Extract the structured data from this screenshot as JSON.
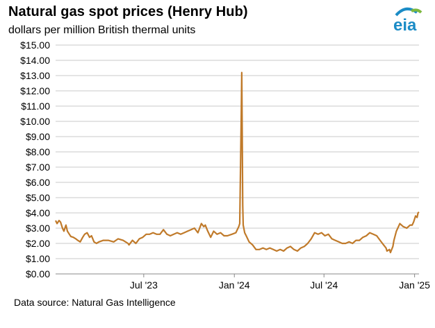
{
  "header": {
    "title": "Natural gas spot prices (Henry Hub)",
    "subtitle": "dollars per million British thermal units",
    "logo_text": "eia"
  },
  "footer": {
    "source": "Data source: Natural Gas Intelligence"
  },
  "colors": {
    "line": "#C07A2A",
    "grid": "#C8C8C8",
    "axis": "#888888",
    "logo_blue": "#1B8CC6",
    "logo_green": "#7DB83F"
  },
  "chart_data": {
    "type": "line",
    "title": "Natural gas spot prices (Henry Hub)",
    "ylabel": "dollars per million British thermal units",
    "ylim": [
      0,
      15
    ],
    "xlim": [
      "2023-01-03",
      "2025-01-10"
    ],
    "grid": true,
    "y_ticks": [
      0,
      1,
      2,
      3,
      4,
      5,
      6,
      7,
      8,
      9,
      10,
      11,
      12,
      13,
      14,
      15
    ],
    "y_tick_labels": [
      "$0.00",
      "$1.00",
      "$2.00",
      "$3.00",
      "$4.00",
      "$5.00",
      "$6.00",
      "$7.00",
      "$8.00",
      "$9.00",
      "$10.00",
      "$11.00",
      "$12.00",
      "$13.00",
      "$14.00",
      "$15.00"
    ],
    "x_ticks": [
      {
        "date": "2023-07-01",
        "label": "Jul '23"
      },
      {
        "date": "2024-01-01",
        "label": "Jan '24"
      },
      {
        "date": "2024-07-01",
        "label": "Jul '24"
      },
      {
        "date": "2025-01-01",
        "label": "Jan '25"
      }
    ],
    "series": [
      {
        "x": [
          "2023-01-03",
          "2023-01-06",
          "2023-01-10",
          "2023-01-13",
          "2023-01-17",
          "2023-01-20",
          "2023-01-24",
          "2023-01-27",
          "2023-01-31",
          "2023-02-03",
          "2023-02-08",
          "2023-02-13",
          "2023-02-17",
          "2023-02-22",
          "2023-02-27",
          "2023-03-03",
          "2023-03-08",
          "2023-03-13",
          "2023-03-17",
          "2023-03-22",
          "2023-03-27",
          "2023-04-01",
          "2023-04-10",
          "2023-04-20",
          "2023-05-01",
          "2023-05-10",
          "2023-05-20",
          "2023-05-30",
          "2023-06-01",
          "2023-06-08",
          "2023-06-15",
          "2023-06-22",
          "2023-06-29",
          "2023-07-06",
          "2023-07-13",
          "2023-07-20",
          "2023-07-27",
          "2023-08-03",
          "2023-08-10",
          "2023-08-17",
          "2023-08-24",
          "2023-08-31",
          "2023-09-07",
          "2023-09-14",
          "2023-09-21",
          "2023-09-28",
          "2023-10-05",
          "2023-10-12",
          "2023-10-19",
          "2023-10-26",
          "2023-10-31",
          "2023-11-03",
          "2023-11-08",
          "2023-11-14",
          "2023-11-20",
          "2023-11-27",
          "2023-12-04",
          "2023-12-11",
          "2023-12-18",
          "2023-12-27",
          "2024-01-04",
          "2024-01-10",
          "2024-01-12",
          "2024-01-15",
          "2024-01-16",
          "2024-01-17",
          "2024-01-18",
          "2024-01-19",
          "2024-01-22",
          "2024-01-25",
          "2024-01-31",
          "2024-02-07",
          "2024-02-14",
          "2024-02-21",
          "2024-02-28",
          "2024-03-06",
          "2024-03-13",
          "2024-03-20",
          "2024-03-27",
          "2024-04-03",
          "2024-04-10",
          "2024-04-17",
          "2024-04-24",
          "2024-05-01",
          "2024-05-08",
          "2024-05-15",
          "2024-05-22",
          "2024-05-29",
          "2024-06-05",
          "2024-06-12",
          "2024-06-19",
          "2024-06-26",
          "2024-07-03",
          "2024-07-10",
          "2024-07-17",
          "2024-07-24",
          "2024-07-31",
          "2024-08-07",
          "2024-08-14",
          "2024-08-21",
          "2024-08-28",
          "2024-09-04",
          "2024-09-11",
          "2024-09-18",
          "2024-09-25",
          "2024-10-02",
          "2024-10-09",
          "2024-10-16",
          "2024-10-23",
          "2024-10-30",
          "2024-11-04",
          "2024-11-06",
          "2024-11-11",
          "2024-11-13",
          "2024-11-18",
          "2024-11-20",
          "2024-11-25",
          "2024-12-02",
          "2024-12-09",
          "2024-12-16",
          "2024-12-23",
          "2024-12-27",
          "2024-12-30",
          "2025-01-03",
          "2025-01-06",
          "2025-01-08",
          "2025-01-10"
        ],
        "values": [
          3.5,
          3.3,
          3.5,
          3.4,
          3.0,
          2.8,
          3.2,
          2.8,
          2.6,
          2.45,
          2.4,
          2.3,
          2.2,
          2.1,
          2.4,
          2.6,
          2.7,
          2.4,
          2.5,
          2.1,
          2.0,
          2.1,
          2.2,
          2.2,
          2.1,
          2.3,
          2.2,
          2.0,
          1.9,
          2.2,
          2.0,
          2.3,
          2.4,
          2.6,
          2.6,
          2.7,
          2.6,
          2.6,
          2.9,
          2.6,
          2.5,
          2.6,
          2.7,
          2.6,
          2.7,
          2.8,
          2.9,
          3.0,
          2.7,
          3.3,
          3.1,
          3.2,
          2.8,
          2.4,
          2.8,
          2.6,
          2.7,
          2.5,
          2.5,
          2.6,
          2.7,
          3.1,
          3.3,
          10.5,
          13.2,
          9.0,
          4.5,
          3.2,
          2.7,
          2.5,
          2.1,
          1.9,
          1.6,
          1.6,
          1.7,
          1.6,
          1.7,
          1.6,
          1.5,
          1.6,
          1.5,
          1.7,
          1.8,
          1.6,
          1.5,
          1.7,
          1.8,
          2.0,
          2.3,
          2.7,
          2.6,
          2.7,
          2.5,
          2.6,
          2.3,
          2.2,
          2.1,
          2.0,
          2.0,
          2.1,
          2.0,
          2.2,
          2.2,
          2.4,
          2.5,
          2.7,
          2.6,
          2.5,
          2.2,
          1.9,
          1.7,
          1.5,
          1.6,
          1.4,
          1.8,
          2.2,
          2.8,
          3.3,
          3.1,
          3.0,
          3.2,
          3.2,
          3.4,
          3.8,
          3.7,
          4.0,
          4.05
        ]
      }
    ]
  }
}
